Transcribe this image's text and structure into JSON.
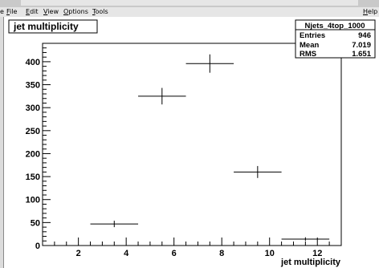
{
  "menubar": {
    "items": [
      {
        "label": "File",
        "u": "F",
        "rest": "ile"
      },
      {
        "label": "Edit",
        "u": "E",
        "rest": "dit"
      },
      {
        "label": "View",
        "u": "V",
        "rest": "iew"
      },
      {
        "label": "Options",
        "u": "O",
        "rest": "ptions"
      },
      {
        "label": "Tools",
        "u": "T",
        "rest": "ools"
      }
    ],
    "left_fragment": "e",
    "help": {
      "u": "H",
      "rest": "elp"
    }
  },
  "stats": {
    "name": "Njets_4top_1000",
    "rows": [
      {
        "label": "Entries",
        "value": "946"
      },
      {
        "label": "Mean",
        "value": "7.019"
      },
      {
        "label": "RMS",
        "value": "1.651"
      }
    ]
  },
  "chart_data": {
    "type": "histogram",
    "title": "jet multiplicity",
    "xlabel": "jet multiplicity",
    "ylabel": "",
    "xlim": [
      0.5,
      13
    ],
    "ylim": [
      0,
      440
    ],
    "xticks": [
      2,
      4,
      6,
      8,
      10,
      12
    ],
    "yticks": [
      0,
      50,
      100,
      150,
      200,
      250,
      300,
      350,
      400
    ],
    "bins": [
      {
        "x_low": 0.5,
        "x_high": 2.5,
        "y": 0,
        "err": 0
      },
      {
        "x_low": 2.5,
        "x_high": 4.5,
        "y": 47,
        "err": 7
      },
      {
        "x_low": 4.5,
        "x_high": 6.5,
        "y": 325,
        "err": 18
      },
      {
        "x_low": 6.5,
        "x_high": 8.5,
        "y": 396,
        "err": 20
      },
      {
        "x_low": 8.5,
        "x_high": 10.5,
        "y": 160,
        "err": 13
      },
      {
        "x_low": 10.5,
        "x_high": 12.5,
        "y": 14,
        "err": 4
      }
    ]
  }
}
